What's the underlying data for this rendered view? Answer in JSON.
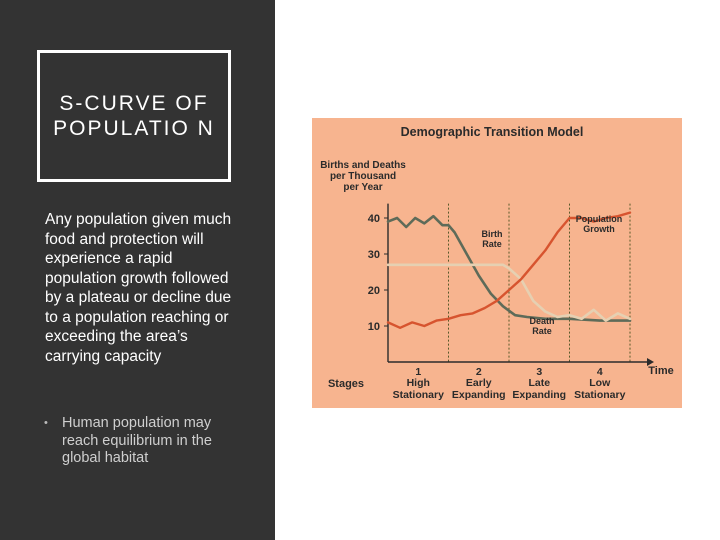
{
  "slide": {
    "title": "S-CURVE OF POPULATIO N",
    "body": "Any population given much food and protection will experience a rapid population growth followed by a plateau or decline due to a population reaching or exceeding the area’s carrying capacity",
    "bullet": "Human population may reach equilibrium in the global habitat"
  },
  "colors": {
    "panel": "#333333",
    "chart_bg": "#f7b48f",
    "birth": "#5e6b59",
    "death": "#e6d0b2",
    "population": "#d7542f"
  },
  "chart_data": {
    "type": "line",
    "title": "Demographic Transition Model",
    "ylabel_lines": [
      "Births and Deaths",
      "per Thousand",
      "per Year"
    ],
    "xlabel": "Time",
    "ylim": [
      0,
      45
    ],
    "yticks": [
      10,
      20,
      30,
      40
    ],
    "xlim": [
      0,
      4
    ],
    "stages_label": "Stages",
    "stages": [
      {
        "number": "1",
        "line1": "High",
        "line2": "Stationary"
      },
      {
        "number": "2",
        "line1": "Early",
        "line2": "Expanding"
      },
      {
        "number": "3",
        "line1": "Late",
        "line2": "Expanding"
      },
      {
        "number": "4",
        "line1": "Low",
        "line2": "Stationary"
      }
    ],
    "series": [
      {
        "name": "Birth Rate",
        "label_lines": [
          "Birth",
          "Rate"
        ],
        "x": [
          0,
          0.15,
          0.3,
          0.45,
          0.6,
          0.75,
          0.9,
          1.0,
          1.1,
          1.3,
          1.5,
          1.7,
          1.9,
          2.1,
          2.3,
          2.6,
          3.0,
          3.5,
          4.0
        ],
        "y": [
          39,
          40,
          37.5,
          40,
          38.5,
          40.5,
          38,
          38,
          36,
          30,
          24,
          19,
          15.5,
          13,
          12.5,
          12,
          12,
          11.5,
          11.5
        ]
      },
      {
        "name": "Death Rate",
        "label_lines": [
          "Death",
          "Rate"
        ],
        "x": [
          0,
          0.3,
          0.6,
          0.9,
          1.0,
          1.3,
          1.6,
          1.9,
          2.0,
          2.2,
          2.4,
          2.6,
          2.8,
          3.0,
          3.2,
          3.4,
          3.6,
          3.8,
          4.0
        ],
        "y": [
          27,
          27,
          27,
          27,
          27,
          27,
          27,
          27,
          26,
          23,
          17,
          14,
          12.5,
          13,
          12,
          14.5,
          11.5,
          13.5,
          12
        ]
      },
      {
        "name": "Population Growth",
        "label_lines": [
          "Population",
          "Growth"
        ],
        "x": [
          0,
          0.2,
          0.4,
          0.6,
          0.8,
          1.0,
          1.2,
          1.4,
          1.6,
          1.8,
          2.0,
          2.2,
          2.4,
          2.6,
          2.8,
          3.0,
          3.2,
          3.4,
          3.6,
          3.8,
          4.0
        ],
        "y": [
          11,
          9.5,
          11,
          10,
          11.5,
          12,
          13,
          13.5,
          15,
          17,
          20,
          23,
          27,
          31,
          36,
          40,
          40,
          39,
          40,
          40.5,
          41.5
        ]
      }
    ]
  }
}
